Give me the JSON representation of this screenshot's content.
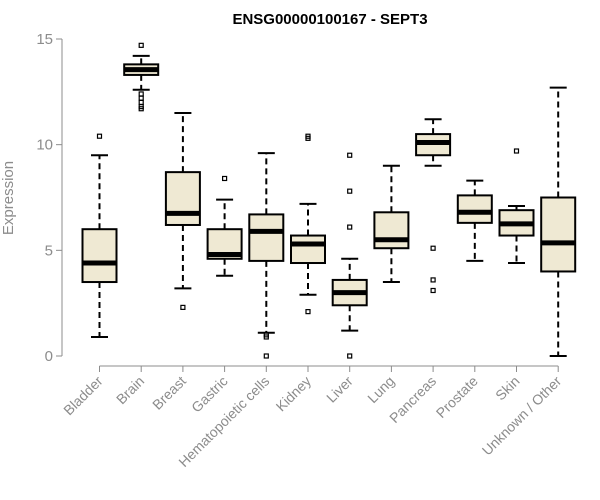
{
  "chart_data": {
    "type": "box",
    "title": "ENSG00000100167 - SEPT3",
    "xlabel": "",
    "ylabel": "Expression",
    "ylim": [
      0,
      15
    ],
    "yticks": [
      0,
      5,
      10,
      15
    ],
    "box_fill": "#efe9d3",
    "box_stroke": "#000000",
    "axis_color": "#8c8c8c",
    "categories": [
      "Bladder",
      "Brain",
      "Breast",
      "Gastric",
      "Hematopoietic cells",
      "Kidney",
      "Liver",
      "Lung",
      "Pancreas",
      "Prostate",
      "Skin",
      "Unknown / Other"
    ],
    "boxes": [
      {
        "name": "Bladder",
        "whisker_low": 0.9,
        "q1": 3.5,
        "median": 4.4,
        "q3": 6.0,
        "whisker_high": 9.5,
        "outliers": [
          10.4
        ]
      },
      {
        "name": "Brain",
        "whisker_low": 12.6,
        "q1": 13.3,
        "median": 13.55,
        "q3": 13.8,
        "whisker_high": 14.2,
        "outliers": [
          14.7,
          12.4,
          12.2,
          12.0,
          11.8,
          11.7
        ]
      },
      {
        "name": "Breast",
        "whisker_low": 3.2,
        "q1": 6.2,
        "median": 6.75,
        "q3": 8.7,
        "whisker_high": 11.5,
        "outliers": [
          2.3
        ]
      },
      {
        "name": "Gastric",
        "whisker_low": 3.8,
        "q1": 4.6,
        "median": 4.8,
        "q3": 6.0,
        "whisker_high": 7.4,
        "outliers": [
          8.4
        ]
      },
      {
        "name": "Hematopoietic cells",
        "whisker_low": 1.1,
        "q1": 4.5,
        "median": 5.9,
        "q3": 6.7,
        "whisker_high": 9.6,
        "outliers": [
          0.9,
          1.0,
          0.0
        ]
      },
      {
        "name": "Kidney",
        "whisker_low": 2.9,
        "q1": 4.4,
        "median": 5.3,
        "q3": 5.7,
        "whisker_high": 7.2,
        "outliers": [
          10.4,
          10.3,
          2.1
        ]
      },
      {
        "name": "Liver",
        "whisker_low": 1.2,
        "q1": 2.4,
        "median": 3.0,
        "q3": 3.6,
        "whisker_high": 4.6,
        "outliers": [
          9.5,
          7.8,
          6.1,
          0.0
        ]
      },
      {
        "name": "Lung",
        "whisker_low": 3.5,
        "q1": 5.1,
        "median": 5.5,
        "q3": 6.8,
        "whisker_high": 9.0,
        "outliers": []
      },
      {
        "name": "Pancreas",
        "whisker_low": 9.0,
        "q1": 9.5,
        "median": 10.1,
        "q3": 10.5,
        "whisker_high": 11.2,
        "outliers": [
          5.1,
          3.6,
          3.1
        ]
      },
      {
        "name": "Prostate",
        "whisker_low": 4.5,
        "q1": 6.3,
        "median": 6.8,
        "q3": 7.6,
        "whisker_high": 8.3,
        "outliers": []
      },
      {
        "name": "Skin",
        "whisker_low": 4.4,
        "q1": 5.7,
        "median": 6.25,
        "q3": 6.9,
        "whisker_high": 7.1,
        "outliers": [
          9.7
        ]
      },
      {
        "name": "Unknown / Other",
        "whisker_low": 0.0,
        "q1": 4.0,
        "median": 5.35,
        "q3": 7.5,
        "whisker_high": 12.7,
        "outliers": []
      }
    ]
  }
}
